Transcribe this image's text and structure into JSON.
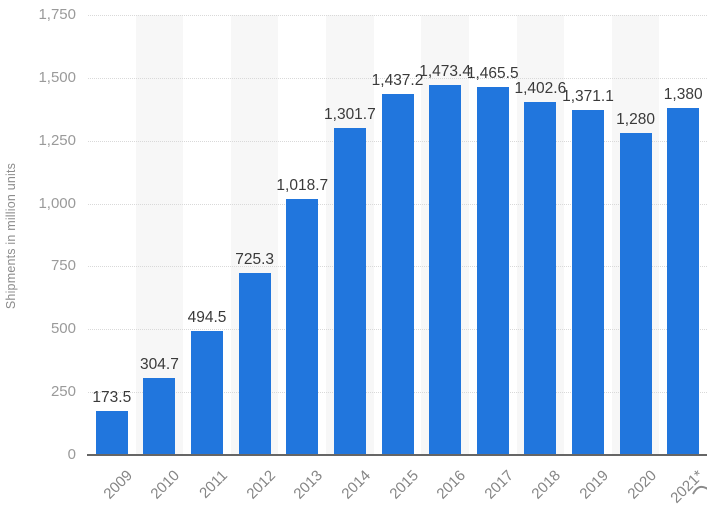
{
  "chart_data": {
    "type": "bar",
    "title": "",
    "ylabel": "Shipments in million units",
    "xlabel": "",
    "categories": [
      "2009",
      "2010",
      "2011",
      "2012",
      "2013",
      "2014",
      "2015",
      "2016",
      "2017",
      "2018",
      "2019",
      "2020",
      "2021*"
    ],
    "values": [
      173.5,
      304.7,
      494.5,
      725.3,
      1018.7,
      1301.7,
      1437.2,
      1473.4,
      1465.5,
      1402.6,
      1371.1,
      1280,
      1380
    ],
    "value_labels": [
      "173.5",
      "304.7",
      "494.5",
      "725.3",
      "1,018.7",
      "1,301.7",
      "1,437.2",
      "1,473.4",
      "1,465.5",
      "1,402.6",
      "1,371.1",
      "1,280",
      "1,380"
    ],
    "ylim": [
      0,
      1750
    ],
    "ytick_step": 250,
    "ytick_values": [
      0,
      250,
      500,
      750,
      1000,
      1250,
      1500,
      1750
    ],
    "ytick_labels": [
      "0",
      "250",
      "500",
      "750",
      "1,000",
      "1,250",
      "1,500",
      "1,750"
    ],
    "grid": "horizontal-dotted",
    "legend": "none",
    "background_stripes": "behind alternate categories (2010, 2012, 2014, 2016, 2018, 2020)",
    "style": {
      "bar_color": "#2176dd",
      "stripe_color": "#f7f7f7",
      "gridline_color": "#d9d9d9",
      "baseline_color": "#666666",
      "tick_text_color": "#9a9a9a",
      "xtick_text_color": "#858585",
      "value_text_color": "#3a3a3a",
      "ylabel_text_color": "#8c8c8c"
    }
  }
}
